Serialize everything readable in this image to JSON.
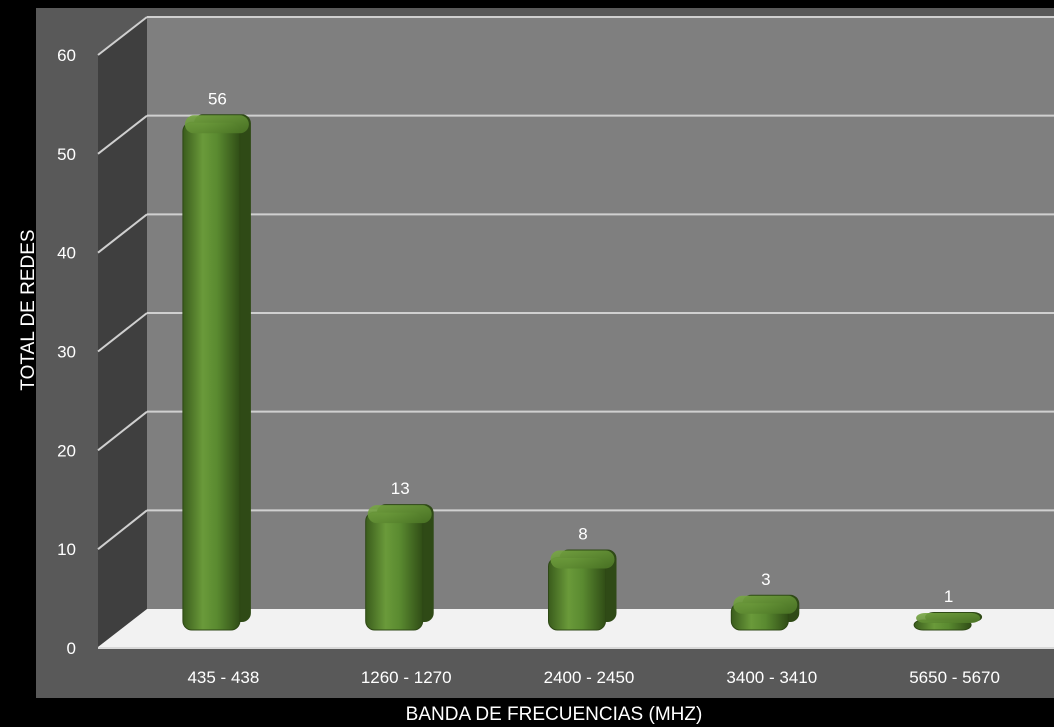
{
  "chart_data": {
    "type": "bar",
    "title": "",
    "xlabel": "BANDA DE FRECUENCIAS (MHZ)",
    "ylabel": "TOTAL DE REDES",
    "categories": [
      "435 - 438",
      "1260 - 1270",
      "2400 - 2450",
      "3400 - 3410",
      "5650 - 5670"
    ],
    "values": [
      56,
      13,
      8,
      3,
      1
    ],
    "data_labels": [
      "56",
      "13",
      "8",
      "3",
      "1"
    ],
    "ylim": [
      0,
      60
    ],
    "yticks": [
      "0",
      "10",
      "20",
      "30",
      "40",
      "50",
      "60"
    ],
    "grid": true,
    "legend": "none",
    "style": "3d-cylinder-bars",
    "colors": {
      "bar": "#4f7a28",
      "back_wall": "#7f7f7f",
      "side_wall": "#3f3f3f",
      "floor": "#f2f2f2",
      "background": "#000000",
      "plot_frame": "#595959"
    }
  }
}
